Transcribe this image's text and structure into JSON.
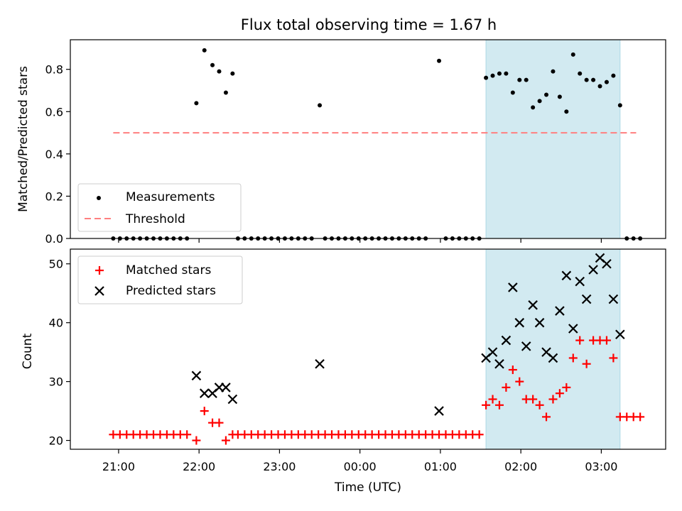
{
  "chart_data": {
    "title": "Flux total observing time = 1.67 h",
    "xlabel": "Time (UTC)",
    "x_ticks": [
      "21:00",
      "22:00",
      "23:00",
      "00:00",
      "01:00",
      "02:00",
      "03:00"
    ],
    "x_range_hours": [
      20.4,
      24.0,
      0.0,
      3.8
    ],
    "highlight_span": {
      "start": "01:34",
      "end": "03:14",
      "color": "#add8e6"
    },
    "panels": [
      {
        "type": "scatter",
        "ylabel": "Matched/Predicted stars",
        "ylim": [
          0,
          0.94
        ],
        "y_ticks": [
          "0.0",
          "0.2",
          "0.4",
          "0.6",
          "0.8"
        ],
        "threshold": {
          "name": "Threshold",
          "value": 0.5,
          "color": "#ff7f7f",
          "from": "20:56",
          "to": "03:26"
        },
        "series": [
          {
            "name": "Measurements",
            "color": "#000000",
            "points": [
              [
                "20:56",
                0.0
              ],
              [
                "21:01",
                0.0
              ],
              [
                "21:06",
                0.0
              ],
              [
                "21:11",
                0.0
              ],
              [
                "21:16",
                0.0
              ],
              [
                "21:21",
                0.0
              ],
              [
                "21:26",
                0.0
              ],
              [
                "21:31",
                0.0
              ],
              [
                "21:36",
                0.0
              ],
              [
                "21:41",
                0.0
              ],
              [
                "21:46",
                0.0
              ],
              [
                "21:51",
                0.0
              ],
              [
                "21:58",
                0.64
              ],
              [
                "22:04",
                0.89
              ],
              [
                "22:10",
                0.82
              ],
              [
                "22:15",
                0.79
              ],
              [
                "22:20",
                0.69
              ],
              [
                "22:25",
                0.78
              ],
              [
                "22:29",
                0.0
              ],
              [
                "22:34",
                0.0
              ],
              [
                "22:39",
                0.0
              ],
              [
                "22:44",
                0.0
              ],
              [
                "22:49",
                0.0
              ],
              [
                "22:54",
                0.0
              ],
              [
                "22:59",
                0.0
              ],
              [
                "23:04",
                0.0
              ],
              [
                "23:09",
                0.0
              ],
              [
                "23:14",
                0.0
              ],
              [
                "23:19",
                0.0
              ],
              [
                "23:24",
                0.0
              ],
              [
                "23:30",
                0.63
              ],
              [
                "23:34",
                0.0
              ],
              [
                "23:39",
                0.0
              ],
              [
                "23:44",
                0.0
              ],
              [
                "23:49",
                0.0
              ],
              [
                "23:54",
                0.0
              ],
              [
                "23:59",
                0.0
              ],
              [
                "00:04",
                0.0
              ],
              [
                "00:09",
                0.0
              ],
              [
                "00:14",
                0.0
              ],
              [
                "00:19",
                0.0
              ],
              [
                "00:24",
                0.0
              ],
              [
                "00:29",
                0.0
              ],
              [
                "00:34",
                0.0
              ],
              [
                "00:39",
                0.0
              ],
              [
                "00:44",
                0.0
              ],
              [
                "00:49",
                0.0
              ],
              [
                "00:59",
                0.84
              ],
              [
                "01:04",
                0.0
              ],
              [
                "01:09",
                0.0
              ],
              [
                "01:14",
                0.0
              ],
              [
                "01:19",
                0.0
              ],
              [
                "01:24",
                0.0
              ],
              [
                "01:29",
                0.0
              ],
              [
                "01:34",
                0.76
              ],
              [
                "01:39",
                0.77
              ],
              [
                "01:44",
                0.78
              ],
              [
                "01:49",
                0.78
              ],
              [
                "01:54",
                0.69
              ],
              [
                "01:59",
                0.75
              ],
              [
                "02:04",
                0.75
              ],
              [
                "02:09",
                0.62
              ],
              [
                "02:14",
                0.65
              ],
              [
                "02:19",
                0.68
              ],
              [
                "02:24",
                0.79
              ],
              [
                "02:29",
                0.67
              ],
              [
                "02:34",
                0.6
              ],
              [
                "02:39",
                0.87
              ],
              [
                "02:44",
                0.78
              ],
              [
                "02:49",
                0.75
              ],
              [
                "02:54",
                0.75
              ],
              [
                "02:59",
                0.72
              ],
              [
                "03:04",
                0.74
              ],
              [
                "03:09",
                0.77
              ],
              [
                "03:14",
                0.63
              ],
              [
                "03:19",
                0.0
              ],
              [
                "03:24",
                0.0
              ],
              [
                "03:29",
                0.0
              ]
            ]
          }
        ],
        "legend": {
          "position": "lower-left",
          "entries": [
            "Measurements",
            "Threshold"
          ]
        }
      },
      {
        "type": "scatter",
        "ylabel": "Count",
        "ylim": [
          18.5,
          52.5
        ],
        "y_ticks": [
          "20",
          "30",
          "40",
          "50"
        ],
        "series": [
          {
            "name": "Matched stars",
            "color": "#ff0000",
            "marker": "+",
            "points": [
              [
                "20:56",
                21
              ],
              [
                "21:01",
                21
              ],
              [
                "21:06",
                21
              ],
              [
                "21:11",
                21
              ],
              [
                "21:16",
                21
              ],
              [
                "21:21",
                21
              ],
              [
                "21:26",
                21
              ],
              [
                "21:31",
                21
              ],
              [
                "21:36",
                21
              ],
              [
                "21:41",
                21
              ],
              [
                "21:46",
                21
              ],
              [
                "21:51",
                21
              ],
              [
                "21:58",
                20
              ],
              [
                "22:04",
                25
              ],
              [
                "22:10",
                23
              ],
              [
                "22:15",
                23
              ],
              [
                "22:20",
                20
              ],
              [
                "22:25",
                21
              ],
              [
                "22:29",
                21
              ],
              [
                "22:34",
                21
              ],
              [
                "22:39",
                21
              ],
              [
                "22:44",
                21
              ],
              [
                "22:49",
                21
              ],
              [
                "22:54",
                21
              ],
              [
                "22:59",
                21
              ],
              [
                "23:04",
                21
              ],
              [
                "23:09",
                21
              ],
              [
                "23:14",
                21
              ],
              [
                "23:19",
                21
              ],
              [
                "23:24",
                21
              ],
              [
                "23:29",
                21
              ],
              [
                "23:34",
                21
              ],
              [
                "23:39",
                21
              ],
              [
                "23:44",
                21
              ],
              [
                "23:49",
                21
              ],
              [
                "23:54",
                21
              ],
              [
                "23:59",
                21
              ],
              [
                "00:04",
                21
              ],
              [
                "00:09",
                21
              ],
              [
                "00:14",
                21
              ],
              [
                "00:19",
                21
              ],
              [
                "00:24",
                21
              ],
              [
                "00:29",
                21
              ],
              [
                "00:34",
                21
              ],
              [
                "00:39",
                21
              ],
              [
                "00:44",
                21
              ],
              [
                "00:49",
                21
              ],
              [
                "00:54",
                21
              ],
              [
                "00:59",
                21
              ],
              [
                "01:04",
                21
              ],
              [
                "01:09",
                21
              ],
              [
                "01:14",
                21
              ],
              [
                "01:19",
                21
              ],
              [
                "01:24",
                21
              ],
              [
                "01:29",
                21
              ],
              [
                "01:34",
                26
              ],
              [
                "01:39",
                27
              ],
              [
                "01:44",
                26
              ],
              [
                "01:49",
                29
              ],
              [
                "01:54",
                32
              ],
              [
                "01:59",
                30
              ],
              [
                "02:04",
                27
              ],
              [
                "02:09",
                27
              ],
              [
                "02:14",
                26
              ],
              [
                "02:19",
                24
              ],
              [
                "02:24",
                27
              ],
              [
                "02:29",
                28
              ],
              [
                "02:34",
                29
              ],
              [
                "02:39",
                34
              ],
              [
                "02:44",
                37
              ],
              [
                "02:49",
                33
              ],
              [
                "02:54",
                37
              ],
              [
                "02:59",
                37
              ],
              [
                "03:04",
                37
              ],
              [
                "03:09",
                34
              ],
              [
                "03:14",
                24
              ],
              [
                "03:19",
                24
              ],
              [
                "03:24",
                24
              ],
              [
                "03:29",
                24
              ]
            ]
          },
          {
            "name": "Predicted stars",
            "color": "#000000",
            "marker": "x",
            "points": [
              [
                "21:58",
                31
              ],
              [
                "22:04",
                28
              ],
              [
                "22:10",
                28
              ],
              [
                "22:15",
                29
              ],
              [
                "22:20",
                29
              ],
              [
                "22:25",
                27
              ],
              [
                "23:30",
                33
              ],
              [
                "00:59",
                25
              ],
              [
                "01:34",
                34
              ],
              [
                "01:39",
                35
              ],
              [
                "01:44",
                33
              ],
              [
                "01:49",
                37
              ],
              [
                "01:54",
                46
              ],
              [
                "01:59",
                40
              ],
              [
                "02:04",
                36
              ],
              [
                "02:09",
                43
              ],
              [
                "02:14",
                40
              ],
              [
                "02:19",
                35
              ],
              [
                "02:24",
                34
              ],
              [
                "02:29",
                42
              ],
              [
                "02:34",
                48
              ],
              [
                "02:39",
                39
              ],
              [
                "02:44",
                47
              ],
              [
                "02:49",
                44
              ],
              [
                "02:54",
                49
              ],
              [
                "02:59",
                51
              ],
              [
                "03:04",
                50
              ],
              [
                "03:09",
                44
              ],
              [
                "03:14",
                38
              ]
            ]
          }
        ],
        "legend": {
          "position": "top-left",
          "entries": [
            "Matched stars",
            "Predicted stars"
          ]
        }
      }
    ]
  }
}
